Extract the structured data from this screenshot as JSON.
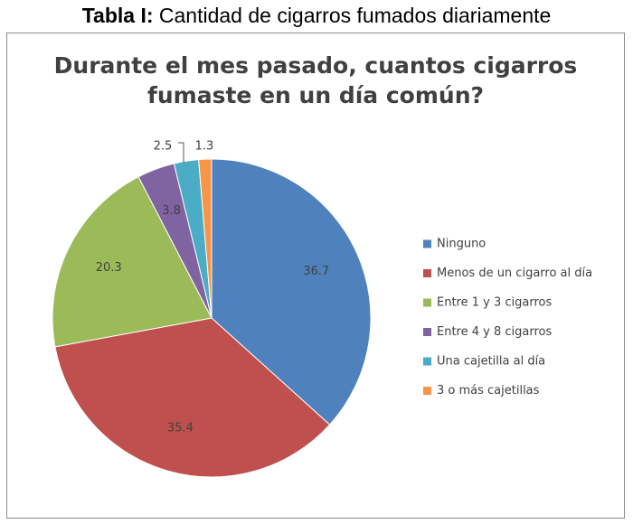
{
  "caption": {
    "prefix": "Tabla I:",
    "text": " Cantidad de cigarros fumados diariamente"
  },
  "chart_data": {
    "type": "pie",
    "title_lines": [
      "Durante el mes pasado, cuantos cigarros",
      "fumaste en un día común?"
    ],
    "legend_position": "right",
    "slices": [
      {
        "name": "Ninguno",
        "value": 36.7,
        "label": "36.7",
        "color": "#4f81bd"
      },
      {
        "name": "Menos de un cigarro al día",
        "value": 35.4,
        "label": "35.4",
        "color": "#c0504d"
      },
      {
        "name": "Entre 1 y 3 cigarros",
        "value": 20.3,
        "label": "20.3",
        "color": "#9bbb59"
      },
      {
        "name": "Entre 4 y 8 cigarros",
        "value": 3.8,
        "label": "3.8",
        "color": "#8064a2"
      },
      {
        "name": "Una cajetilla al día",
        "value": 2.5,
        "label": "2.5",
        "color": "#4bacc6"
      },
      {
        "name": "3 o más cajetillas",
        "value": 1.3,
        "label": "1.3",
        "color": "#f79646"
      }
    ]
  }
}
